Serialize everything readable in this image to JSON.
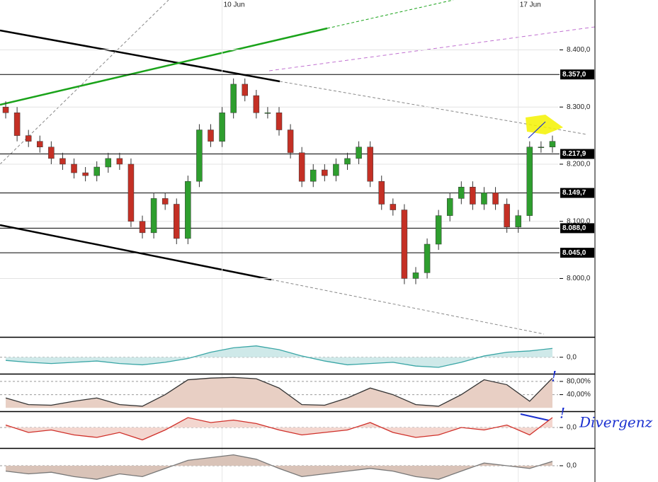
{
  "chart_data": [
    {
      "type": "candlestick",
      "xlim": [
        -0.5,
        48.5
      ],
      "xticks": [
        {
          "value": 19,
          "label": "10 Jun"
        },
        {
          "value": 45,
          "label": "17 Jun"
        }
      ],
      "ylim": [
        7899,
        8465
      ],
      "yticks": [
        {
          "value": 8400,
          "label": "8.400,0"
        },
        {
          "value": 8300,
          "label": "8.300,0"
        },
        {
          "value": 8200,
          "label": "8.200,0"
        },
        {
          "value": 8100,
          "label": "8.100,0"
        },
        {
          "value": 8000,
          "label": "8.000,0"
        }
      ],
      "levels": [
        {
          "value": 8357,
          "label": "8.357,0"
        },
        {
          "value": 8217.9,
          "label": "8.217,9"
        },
        {
          "value": 8149.7,
          "label": "8.149,7"
        },
        {
          "value": 8088,
          "label": "8.088,0"
        },
        {
          "value": 8045,
          "label": "8.045,0"
        }
      ],
      "up_color": "#2e9e2e",
      "down_color": "#c43025",
      "open": [
        8300,
        8290,
        8250,
        8240,
        8230,
        8210,
        8200,
        8185,
        8180,
        8195,
        8210,
        8200,
        8100,
        8080,
        8140,
        8130,
        8070,
        8170,
        8260,
        8240,
        8290,
        8340,
        8320,
        8290,
        8290,
        8260,
        8220,
        8170,
        8190,
        8180,
        8200,
        8210,
        8230,
        8170,
        8130,
        8120,
        8000,
        8010,
        8060,
        8110,
        8140,
        8160,
        8130,
        8150,
        8130,
        8090,
        8110,
        8230,
        8230
      ],
      "high": [
        8310,
        8300,
        8260,
        8250,
        8240,
        8220,
        8210,
        8195,
        8205,
        8220,
        8220,
        8210,
        8110,
        8150,
        8150,
        8140,
        8180,
        8270,
        8270,
        8300,
        8350,
        8350,
        8330,
        8300,
        8300,
        8270,
        8230,
        8200,
        8200,
        8210,
        8220,
        8240,
        8240,
        8180,
        8140,
        8130,
        8020,
        8070,
        8120,
        8150,
        8170,
        8170,
        8160,
        8160,
        8140,
        8120,
        8240,
        8240,
        8250
      ],
      "low": [
        8280,
        8240,
        8230,
        8220,
        8200,
        8190,
        8175,
        8170,
        8170,
        8185,
        8190,
        8090,
        8070,
        8070,
        8120,
        8060,
        8060,
        8160,
        8230,
        8230,
        8280,
        8310,
        8280,
        8280,
        8250,
        8210,
        8160,
        8160,
        8170,
        8170,
        8190,
        8200,
        8160,
        8120,
        8110,
        7990,
        7990,
        8000,
        8050,
        8100,
        8130,
        8120,
        8120,
        8120,
        8080,
        8080,
        8100,
        8220,
        8220
      ],
      "close": [
        8290,
        8250,
        8240,
        8230,
        8210,
        8200,
        8185,
        8180,
        8195,
        8210,
        8200,
        8100,
        8080,
        8140,
        8130,
        8070,
        8170,
        8260,
        8240,
        8290,
        8340,
        8320,
        8290,
        8290,
        8260,
        8220,
        8170,
        8190,
        8180,
        8200,
        8210,
        8230,
        8170,
        8130,
        8120,
        8000,
        8010,
        8060,
        8110,
        8140,
        8160,
        8130,
        8150,
        8130,
        8090,
        8110,
        8230,
        8230,
        8240
      ]
    },
    {
      "type": "area",
      "xlim": [
        -0.5,
        48.5
      ],
      "ylim": [
        -25,
        30
      ],
      "yticks": [
        {
          "value": 0,
          "label": "0,0"
        }
      ],
      "color": "#3aa6a6",
      "fill": "#cfe9e9",
      "x": [
        0,
        2,
        4,
        6,
        8,
        10,
        12,
        14,
        16,
        18,
        20,
        22,
        24,
        26,
        28,
        30,
        32,
        34,
        36,
        38,
        40,
        42,
        44,
        46,
        48
      ],
      "values": [
        -5,
        -8,
        -10,
        -8,
        -6,
        -10,
        -12,
        -8,
        -2,
        8,
        15,
        18,
        12,
        2,
        -6,
        -12,
        -10,
        -8,
        -14,
        -16,
        -8,
        2,
        8,
        10,
        14
      ]
    },
    {
      "type": "area",
      "xlim": [
        -0.5,
        48.5
      ],
      "ylim": [
        -8,
        99
      ],
      "yticks": [
        {
          "value": 80,
          "label": "80,00%"
        },
        {
          "value": 40,
          "label": "40,00%"
        }
      ],
      "color": "#333333",
      "fill": "#e8cfc4",
      "x": [
        0,
        2,
        4,
        6,
        8,
        10,
        12,
        14,
        16,
        18,
        20,
        22,
        24,
        26,
        28,
        30,
        32,
        34,
        36,
        38,
        40,
        42,
        44,
        46,
        48
      ],
      "values": [
        30,
        10,
        8,
        20,
        30,
        10,
        5,
        40,
        85,
        90,
        92,
        88,
        60,
        10,
        8,
        30,
        60,
        40,
        10,
        5,
        40,
        85,
        70,
        20,
        90
      ]
    },
    {
      "type": "area",
      "xlim": [
        -0.5,
        48.5
      ],
      "ylim": [
        -40,
        30
      ],
      "yticks": [
        {
          "value": 0,
          "label": "0,0"
        }
      ],
      "color": "#d0302a",
      "fill": "#f3d6cf",
      "x": [
        0,
        2,
        4,
        6,
        8,
        10,
        12,
        14,
        16,
        18,
        20,
        22,
        24,
        26,
        28,
        30,
        32,
        34,
        36,
        38,
        40,
        42,
        44,
        46,
        48
      ],
      "values": [
        5,
        -10,
        -5,
        -15,
        -20,
        -10,
        -25,
        -5,
        20,
        10,
        15,
        8,
        -5,
        -15,
        -10,
        -5,
        10,
        -10,
        -20,
        -15,
        0,
        -5,
        5,
        -15,
        20
      ]
    },
    {
      "type": "area",
      "xlim": [
        -0.5,
        48.5
      ],
      "ylim": [
        -30,
        30
      ],
      "yticks": [
        {
          "value": 0,
          "label": "0,0"
        }
      ],
      "color": "#777777",
      "fill": "#d9c3b8",
      "x": [
        0,
        2,
        4,
        6,
        8,
        10,
        12,
        14,
        16,
        18,
        20,
        22,
        24,
        26,
        28,
        30,
        32,
        34,
        36,
        38,
        40,
        42,
        44,
        46,
        48
      ],
      "values": [
        -10,
        -15,
        -12,
        -20,
        -25,
        -15,
        -20,
        -5,
        10,
        15,
        20,
        12,
        -5,
        -20,
        -15,
        -10,
        -5,
        -10,
        -20,
        -25,
        -10,
        5,
        0,
        -5,
        8
      ]
    }
  ],
  "annotations": [
    "!",
    "!",
    "Divergenz"
  ]
}
